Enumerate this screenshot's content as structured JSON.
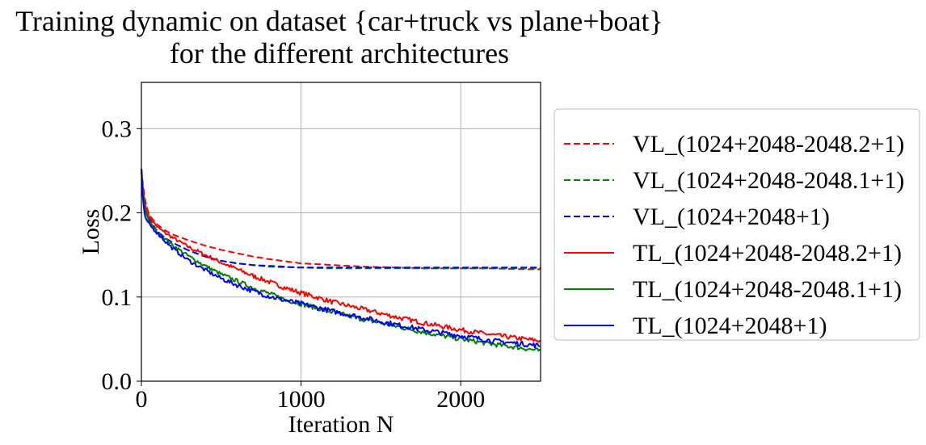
{
  "chart_data": {
    "type": "line",
    "title_lines": [
      "Training dynamic on dataset {car+truck vs plane+boat}",
      "for the different architectures"
    ],
    "xlabel": "Iteration N",
    "ylabel": "Loss",
    "xlim": [
      0,
      2500
    ],
    "ylim": [
      0,
      0.355
    ],
    "xticks": [
      0,
      1000,
      2000
    ],
    "xtick_labels": [
      "0",
      "1000",
      "2000"
    ],
    "yticks": [
      0.0,
      0.1,
      0.2,
      0.3
    ],
    "ytick_labels": [
      "0.0",
      "0.1",
      "0.2",
      "0.3"
    ],
    "grid": true,
    "legend_position": "outside-right",
    "series": [
      {
        "name": "VL_(1024+2048-2048.2+1)",
        "color": "#ff0000",
        "dashed": true,
        "noise": 0,
        "x": [
          0,
          10,
          25,
          50,
          100,
          150,
          200,
          300,
          400,
          500,
          600,
          700,
          800,
          1000,
          1200,
          1400,
          1600,
          1800,
          2000,
          2200,
          2400,
          2500
        ],
        "y": [
          0.252,
          0.232,
          0.212,
          0.197,
          0.186,
          0.179,
          0.174,
          0.167,
          0.161,
          0.156,
          0.152,
          0.148,
          0.145,
          0.14,
          0.138,
          0.136,
          0.135,
          0.134,
          0.134,
          0.134,
          0.133,
          0.133
        ]
      },
      {
        "name": "VL_(1024+2048-2048.1+1)",
        "color": "#008000",
        "dashed": true,
        "noise": 0,
        "x": [
          0,
          10,
          25,
          50,
          100,
          150,
          200,
          300,
          400,
          500,
          600,
          700,
          800,
          1000,
          1200,
          1400,
          1600,
          1800,
          2000,
          2200,
          2400,
          2500
        ],
        "y": [
          0.252,
          0.228,
          0.206,
          0.19,
          0.177,
          0.17,
          0.164,
          0.155,
          0.148,
          0.143,
          0.14,
          0.138,
          0.136,
          0.135,
          0.134,
          0.134,
          0.134,
          0.134,
          0.134,
          0.134,
          0.134,
          0.134
        ]
      },
      {
        "name": "VL_(1024+2048+1)",
        "color": "#0000ff",
        "dashed": true,
        "noise": 0,
        "x": [
          0,
          10,
          25,
          50,
          100,
          150,
          200,
          300,
          400,
          500,
          600,
          700,
          800,
          1000,
          1200,
          1400,
          1600,
          1800,
          2000,
          2200,
          2400,
          2500
        ],
        "y": [
          0.252,
          0.229,
          0.208,
          0.192,
          0.178,
          0.17,
          0.164,
          0.155,
          0.148,
          0.143,
          0.14,
          0.138,
          0.137,
          0.135,
          0.135,
          0.135,
          0.135,
          0.135,
          0.135,
          0.135,
          0.135,
          0.135
        ]
      },
      {
        "name": "TL_(1024+2048-2048.2+1)",
        "color": "#ff0000",
        "dashed": false,
        "noise": 0.0028,
        "x": [
          0,
          10,
          25,
          50,
          100,
          150,
          200,
          300,
          400,
          500,
          600,
          700,
          800,
          900,
          1000,
          1200,
          1400,
          1600,
          1800,
          2000,
          2200,
          2400,
          2500
        ],
        "y": [
          0.252,
          0.228,
          0.208,
          0.195,
          0.183,
          0.176,
          0.17,
          0.159,
          0.15,
          0.141,
          0.133,
          0.125,
          0.118,
          0.111,
          0.105,
          0.094,
          0.085,
          0.076,
          0.068,
          0.061,
          0.055,
          0.05,
          0.048
        ]
      },
      {
        "name": "TL_(1024+2048-2048.1+1)",
        "color": "#008000",
        "dashed": false,
        "noise": 0.0028,
        "x": [
          0,
          10,
          25,
          50,
          100,
          150,
          200,
          300,
          400,
          500,
          600,
          700,
          800,
          900,
          1000,
          1200,
          1400,
          1600,
          1800,
          2000,
          2200,
          2400,
          2500
        ],
        "y": [
          0.252,
          0.222,
          0.202,
          0.189,
          0.177,
          0.169,
          0.161,
          0.148,
          0.137,
          0.127,
          0.119,
          0.111,
          0.104,
          0.097,
          0.092,
          0.082,
          0.073,
          0.065,
          0.057,
          0.05,
          0.044,
          0.039,
          0.036
        ]
      },
      {
        "name": "TL_(1024+2048+1)",
        "color": "#0000ff",
        "dashed": false,
        "noise": 0.003,
        "x": [
          0,
          10,
          25,
          50,
          100,
          150,
          200,
          300,
          400,
          500,
          600,
          700,
          800,
          900,
          1000,
          1200,
          1400,
          1600,
          1800,
          2000,
          2200,
          2400,
          2500
        ],
        "y": [
          0.252,
          0.212,
          0.194,
          0.186,
          0.176,
          0.166,
          0.157,
          0.143,
          0.132,
          0.122,
          0.114,
          0.107,
          0.101,
          0.096,
          0.092,
          0.083,
          0.075,
          0.067,
          0.06,
          0.054,
          0.048,
          0.044,
          0.042
        ]
      }
    ]
  }
}
